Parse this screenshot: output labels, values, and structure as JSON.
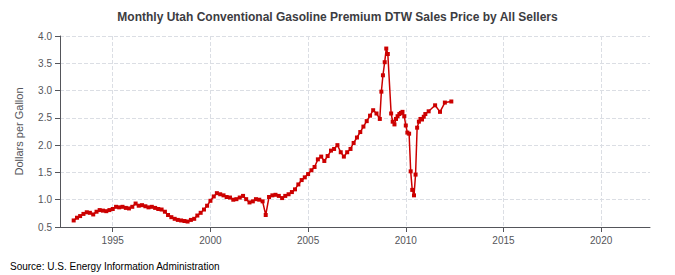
{
  "chart_data": {
    "type": "line",
    "title": "Monthly Utah Conventional Gasoline Premium DTW Sales Price by All Sellers",
    "ylabel": "Dollars per Gallon",
    "annotations": [
      "Source: U.S. Energy Information Administration"
    ],
    "color": "#cc0000",
    "marker": "square",
    "grid": true,
    "xlim": [
      1992.3,
      2022.5
    ],
    "xticks": [
      1995,
      2000,
      2005,
      2010,
      2015,
      2020
    ],
    "ylim": [
      0.5,
      4.0
    ],
    "yticks": [
      0.5,
      {
        "value": 1.0,
        "label": "1.0"
      },
      1.5,
      {
        "value": 2.0,
        "label": "2.0"
      },
      2.5,
      {
        "value": 3.0,
        "label": "3.0"
      },
      3.5,
      {
        "value": 4.0,
        "label": "4.0"
      }
    ],
    "x": [
      1993.0,
      1993.17,
      1993.33,
      1993.5,
      1993.67,
      1993.83,
      1994.0,
      1994.17,
      1994.33,
      1994.5,
      1994.67,
      1994.83,
      1995.0,
      1995.17,
      1995.33,
      1995.5,
      1995.67,
      1995.83,
      1996.0,
      1996.17,
      1996.33,
      1996.5,
      1996.67,
      1996.83,
      1997.0,
      1997.17,
      1997.33,
      1997.5,
      1997.67,
      1997.83,
      1998.0,
      1998.17,
      1998.33,
      1998.5,
      1998.67,
      1998.83,
      1999.0,
      1999.17,
      1999.33,
      1999.5,
      1999.67,
      1999.83,
      2000.0,
      2000.17,
      2000.33,
      2000.5,
      2000.67,
      2000.83,
      2001.0,
      2001.17,
      2001.33,
      2001.5,
      2001.67,
      2001.83,
      2002.0,
      2002.17,
      2002.33,
      2002.5,
      2002.67,
      2002.83,
      2003.0,
      2003.17,
      2003.33,
      2003.5,
      2003.67,
      2003.83,
      2004.0,
      2004.17,
      2004.33,
      2004.5,
      2004.67,
      2004.83,
      2005.0,
      2005.17,
      2005.33,
      2005.5,
      2005.67,
      2005.83,
      2006.0,
      2006.17,
      2006.33,
      2006.5,
      2006.67,
      2006.83,
      2007.0,
      2007.17,
      2007.33,
      2007.5,
      2007.67,
      2007.83,
      2008.0,
      2008.17,
      2008.33,
      2008.5,
      2008.67,
      2008.75,
      2008.83,
      2008.92,
      2009.0,
      2009.08,
      2009.25,
      2009.33,
      2009.42,
      2009.5,
      2009.58,
      2009.67,
      2009.75,
      2009.83,
      2009.92,
      2010.0,
      2010.08,
      2010.17,
      2010.25,
      2010.33,
      2010.42,
      2010.5,
      2010.58,
      2010.67,
      2010.75,
      2010.83,
      2010.92,
      2011.0,
      2011.17,
      2011.5,
      2011.75,
      2012.0,
      2012.33
    ],
    "values": [
      0.62,
      0.67,
      0.7,
      0.74,
      0.77,
      0.76,
      0.73,
      0.78,
      0.81,
      0.8,
      0.79,
      0.81,
      0.83,
      0.87,
      0.86,
      0.87,
      0.85,
      0.84,
      0.87,
      0.93,
      0.89,
      0.9,
      0.88,
      0.86,
      0.87,
      0.85,
      0.83,
      0.82,
      0.78,
      0.72,
      0.68,
      0.65,
      0.63,
      0.62,
      0.61,
      0.6,
      0.63,
      0.65,
      0.71,
      0.76,
      0.82,
      0.89,
      0.98,
      1.06,
      1.12,
      1.1,
      1.08,
      1.05,
      1.04,
      1.0,
      1.01,
      1.04,
      1.07,
      1.01,
      0.95,
      0.97,
      1.01,
      1.0,
      0.97,
      0.72,
      1.05,
      1.08,
      1.09,
      1.07,
      1.03,
      1.07,
      1.1,
      1.14,
      1.19,
      1.28,
      1.36,
      1.41,
      1.47,
      1.54,
      1.6,
      1.74,
      1.79,
      1.71,
      1.8,
      1.9,
      1.93,
      2.0,
      1.87,
      1.79,
      1.87,
      1.93,
      2.04,
      2.14,
      2.24,
      2.34,
      2.44,
      2.54,
      2.64,
      2.58,
      2.48,
      2.98,
      3.28,
      3.52,
      3.77,
      3.67,
      2.58,
      2.43,
      2.38,
      2.48,
      2.53,
      2.57,
      2.59,
      2.61,
      2.53,
      2.36,
      2.23,
      2.21,
      1.52,
      1.18,
      1.08,
      1.46,
      2.32,
      2.43,
      2.48,
      2.47,
      2.52,
      2.57,
      2.62,
      2.73,
      2.61,
      2.78,
      2.8
    ]
  }
}
